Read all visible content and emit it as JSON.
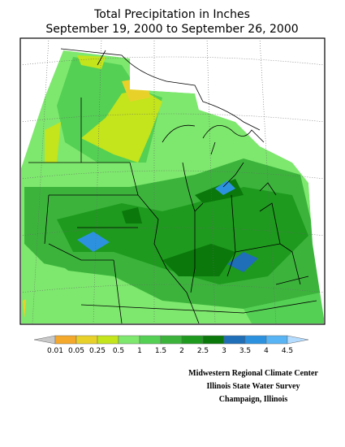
{
  "header": {
    "title": "Total Precipitation in Inches",
    "subtitle": "September 19, 2000 to September 26, 2000"
  },
  "legend": {
    "labels": [
      "0.01",
      "0.05",
      "0.25",
      "0.5",
      "1",
      "1.5",
      "2",
      "2.5",
      "3",
      "3.5",
      "4",
      "4.5"
    ],
    "colors": [
      "#f4a82c",
      "#e8d22a",
      "#c4e41c",
      "#7ee86e",
      "#54d054",
      "#3cb43c",
      "#1e9a1e",
      "#0a780a",
      "#1e6eb8",
      "#2c92e0",
      "#58b4f4"
    ],
    "under_color": "#c8c8c8",
    "over_color": "#b4dcff"
  },
  "credits": [
    "Midwestern Regional Climate Center",
    "Illinois State Water Survey",
    "Champaign, Illinois"
  ]
}
